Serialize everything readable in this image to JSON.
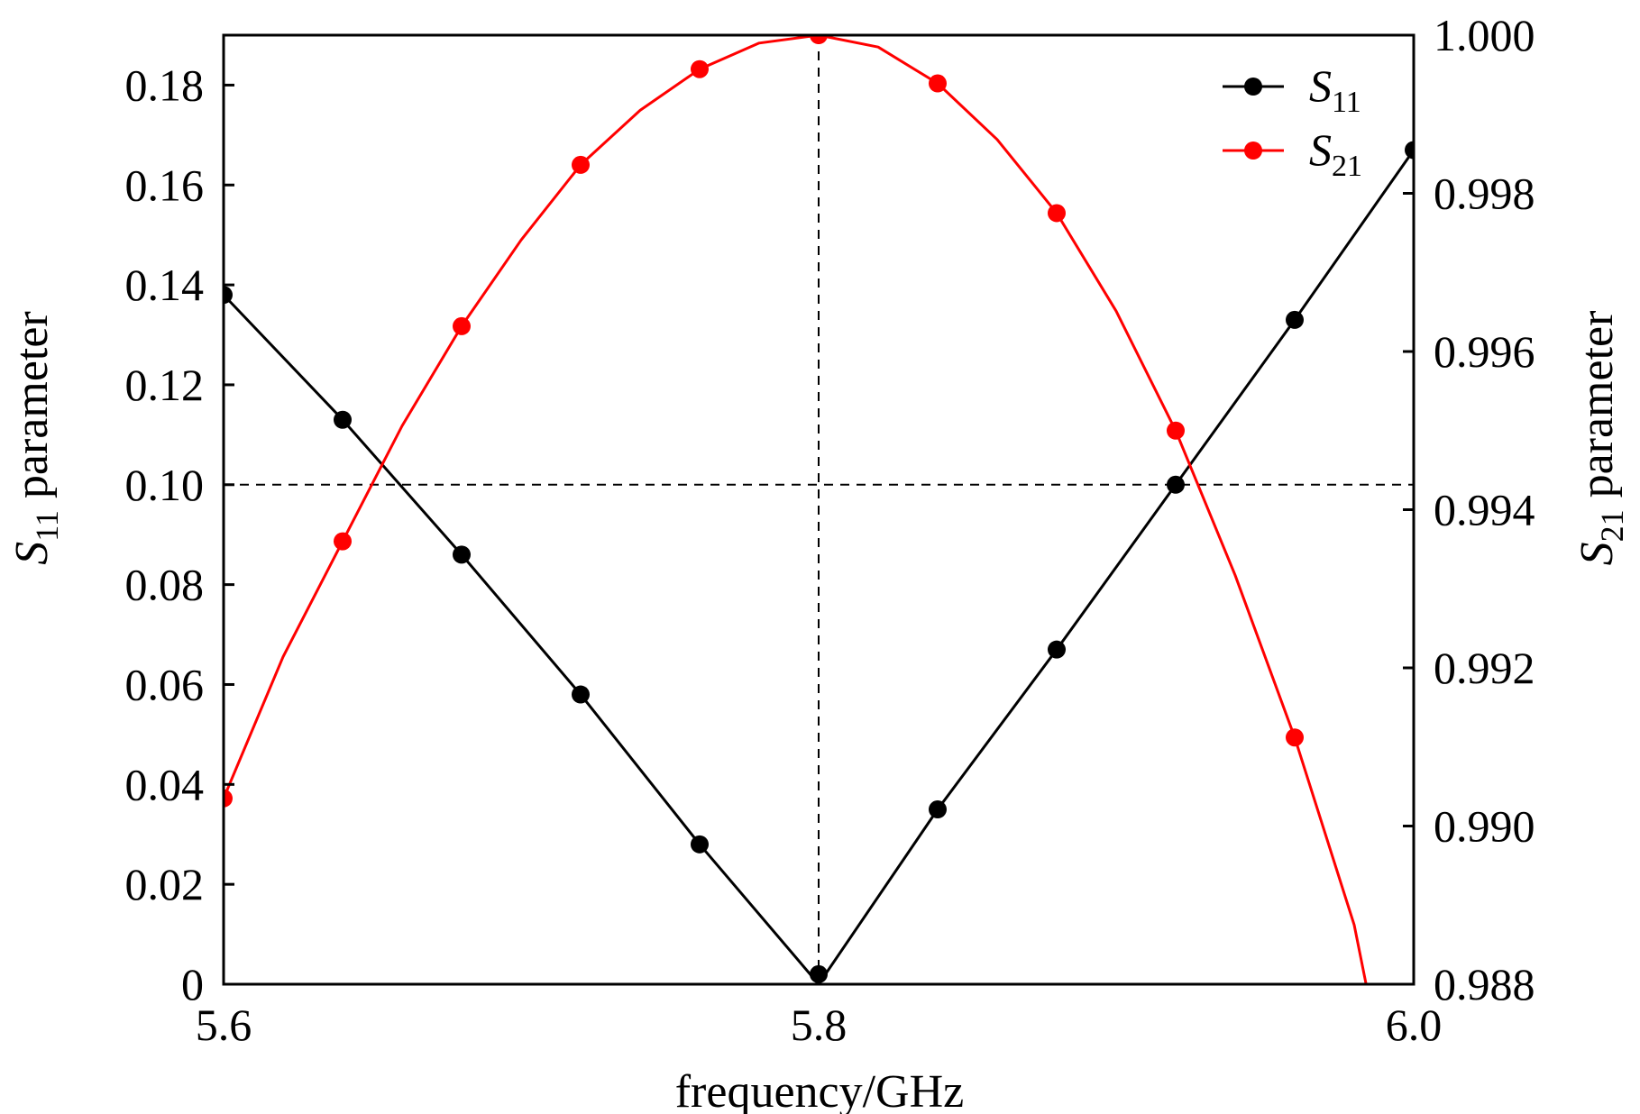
{
  "chart_data": {
    "type": "line",
    "xlabel": "frequency/GHz",
    "ylabel_left": {
      "symbol": "S",
      "subscript": "11",
      "suffix": "parameter"
    },
    "ylabel_right": {
      "symbol": "S",
      "subscript": "21",
      "suffix": "parameter"
    },
    "x_ticks": [
      "5.6",
      "5.8",
      "6.0"
    ],
    "x_tick_values": [
      5.6,
      5.8,
      6.0
    ],
    "y_left_ticks": [
      "0",
      "0.02",
      "0.04",
      "0.06",
      "0.08",
      "0.10",
      "0.12",
      "0.14",
      "0.16",
      "0.18"
    ],
    "y_left_tick_values": [
      0,
      0.02,
      0.04,
      0.06,
      0.08,
      0.1,
      0.12,
      0.14,
      0.16,
      0.18
    ],
    "y_right_ticks": [
      "0.988",
      "0.990",
      "0.992",
      "0.994",
      "0.996",
      "0.998",
      "1.000"
    ],
    "y_right_tick_values": [
      0.988,
      0.99,
      0.992,
      0.994,
      0.996,
      0.998,
      1.0
    ],
    "xlim": [
      5.6,
      6.0
    ],
    "ylim_left": [
      0,
      0.19
    ],
    "ylim_right": [
      0.988,
      1.0
    ],
    "reference_lines": {
      "vertical_x": 5.8,
      "horizontal_y_left": 0.1
    },
    "grid": false,
    "legend_position": "top-right",
    "series": [
      {
        "name": "S11",
        "legend": {
          "symbol": "S",
          "subscript": "11"
        },
        "axis": "left",
        "color": "#000000",
        "marker": "circle",
        "x": [
          5.6,
          5.64,
          5.68,
          5.72,
          5.76,
          5.8,
          5.84,
          5.88,
          5.92,
          5.96,
          6.0
        ],
        "y": [
          0.138,
          0.113,
          0.086,
          0.058,
          0.028,
          0.002,
          0.035,
          0.067,
          0.1,
          0.133,
          0.167
        ],
        "line": {
          "x": [
            5.6,
            5.64,
            5.68,
            5.72,
            5.76,
            5.8,
            5.84,
            5.88,
            5.92,
            5.96,
            6.0
          ],
          "y": [
            0.138,
            0.113,
            0.086,
            0.058,
            0.028,
            0.0,
            0.035,
            0.067,
            0.1,
            0.133,
            0.167
          ]
        }
      },
      {
        "name": "S21",
        "legend": {
          "symbol": "S",
          "subscript": "21"
        },
        "axis": "right",
        "color": "#ff0000",
        "marker": "circle",
        "x": [
          5.6,
          5.64,
          5.68,
          5.72,
          5.76,
          5.8,
          5.84,
          5.88,
          5.92,
          5.96
        ],
        "y": [
          0.99035,
          0.9936,
          0.99632,
          0.99836,
          0.99957,
          1.0,
          0.99939,
          0.99775,
          0.995,
          0.99112
        ],
        "line": {
          "x": [
            5.6,
            5.62,
            5.64,
            5.66,
            5.68,
            5.7,
            5.72,
            5.74,
            5.76,
            5.78,
            5.8,
            5.82,
            5.84,
            5.86,
            5.88,
            5.9,
            5.92,
            5.94,
            5.96,
            5.98,
            5.984
          ],
          "y": [
            0.99035,
            0.99214,
            0.9936,
            0.99506,
            0.99632,
            0.99741,
            0.99836,
            0.99905,
            0.99957,
            0.9999,
            1.0,
            0.99985,
            0.99939,
            0.99868,
            0.99775,
            0.99651,
            0.995,
            0.99317,
            0.99112,
            0.98875,
            0.988
          ]
        }
      }
    ]
  }
}
